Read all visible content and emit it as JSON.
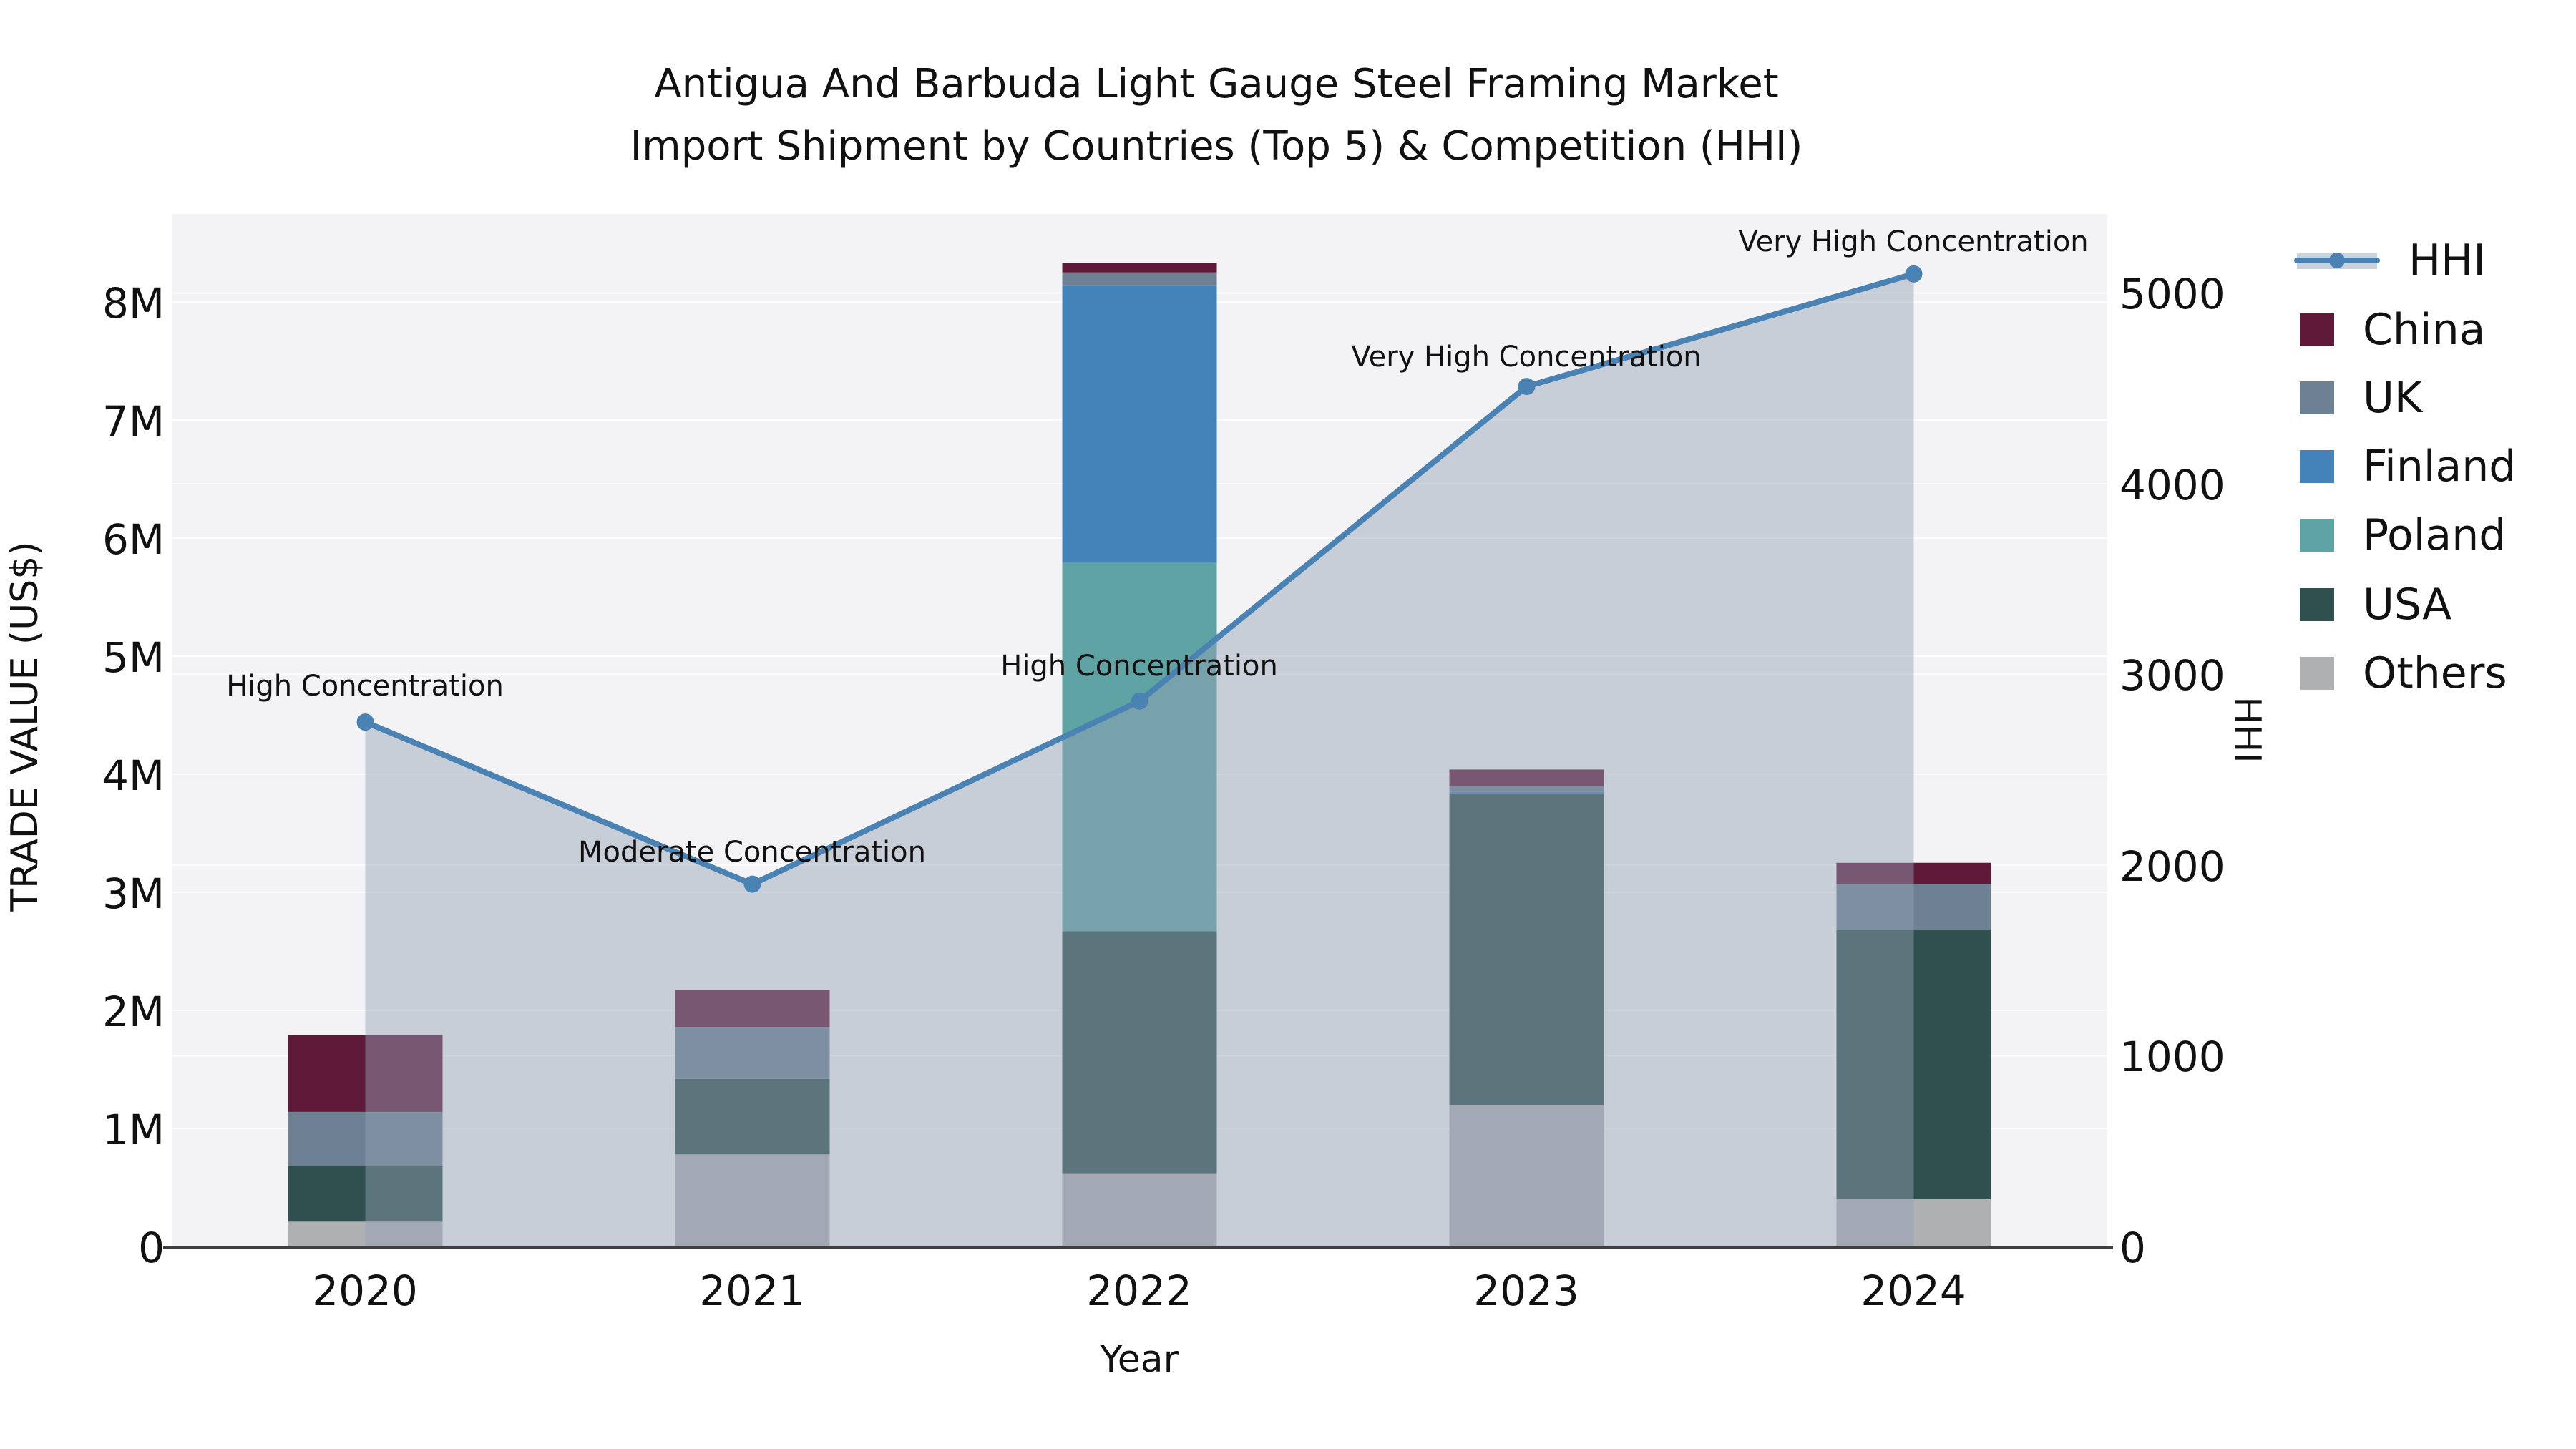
{
  "title": {
    "line1": "Antigua And Barbuda Light Gauge Steel Framing Market",
    "line2": "Import Shipment by Countries (Top 5) & Competition (HHI)"
  },
  "chart_data": {
    "type": "combo",
    "bar_mode": "stacked",
    "values_unit": "US$ millions (left axis) / HHI index points (right axis)",
    "categories": [
      "2020",
      "2021",
      "2022",
      "2023",
      "2024"
    ],
    "bar_series": [
      {
        "name": "Others",
        "color": "#aeb0b2",
        "values": [
          0.21,
          0.78,
          0.62,
          1.2,
          0.4
        ]
      },
      {
        "name": "USA",
        "color": "#2f504e",
        "values": [
          0.47,
          0.64,
          2.05,
          2.63,
          2.28
        ]
      },
      {
        "name": "Poland",
        "color": "#5fa3a4",
        "values": [
          0,
          0,
          3.12,
          0,
          0
        ]
      },
      {
        "name": "Finland",
        "color": "#4383ba",
        "values": [
          0,
          0,
          2.35,
          0.02,
          0
        ]
      },
      {
        "name": "UK",
        "color": "#6e8093",
        "values": [
          0.46,
          0.44,
          0.11,
          0.05,
          0.39
        ]
      },
      {
        "name": "China",
        "color": "#5f1a3a",
        "values": [
          0.65,
          0.31,
          0.08,
          0.14,
          0.18
        ]
      }
    ],
    "bar_totals": [
      1.79,
      2.17,
      8.33,
      4.04,
      3.25
    ],
    "line_series": {
      "name": "HHI",
      "color": "#4a82b4",
      "fill_color": "rgba(148,162,182,0.45)",
      "values": [
        2750,
        1900,
        2860,
        4510,
        5100
      ]
    },
    "annotations": [
      "High Concentration",
      "Moderate Concentration",
      "High Concentration",
      "Very High Concentration",
      "Very High Concentration"
    ],
    "left_axis": {
      "label": "TRADE VALUE (US$)",
      "ticks": [
        "8M",
        "7M",
        "6M",
        "5M",
        "4M",
        "3M",
        "2M",
        "1M",
        "0"
      ],
      "range": [
        0,
        8.8
      ]
    },
    "right_axis": {
      "label": "HHI",
      "ticks": [
        "5000",
        "4000",
        "3000",
        "2000",
        "1000",
        "0"
      ],
      "range": [
        0,
        5400
      ]
    },
    "x_axis": {
      "label": "Year"
    },
    "legend": [
      {
        "label": "HHI",
        "color": "#4a82b4",
        "band_color": "#c9d1dc"
      },
      {
        "label": "China",
        "color": "#5f1a3a"
      },
      {
        "label": "UK",
        "color": "#6e8093"
      },
      {
        "label": "Finland",
        "color": "#4383ba"
      },
      {
        "label": "Poland",
        "color": "#5fa3a4"
      },
      {
        "label": "USA",
        "color": "#2f504e"
      },
      {
        "label": "Others",
        "color": "#aeb0b2"
      }
    ],
    "layout_hints": {
      "grid": true,
      "legend_position": "right",
      "plot_background": "#f3f3f5"
    }
  }
}
